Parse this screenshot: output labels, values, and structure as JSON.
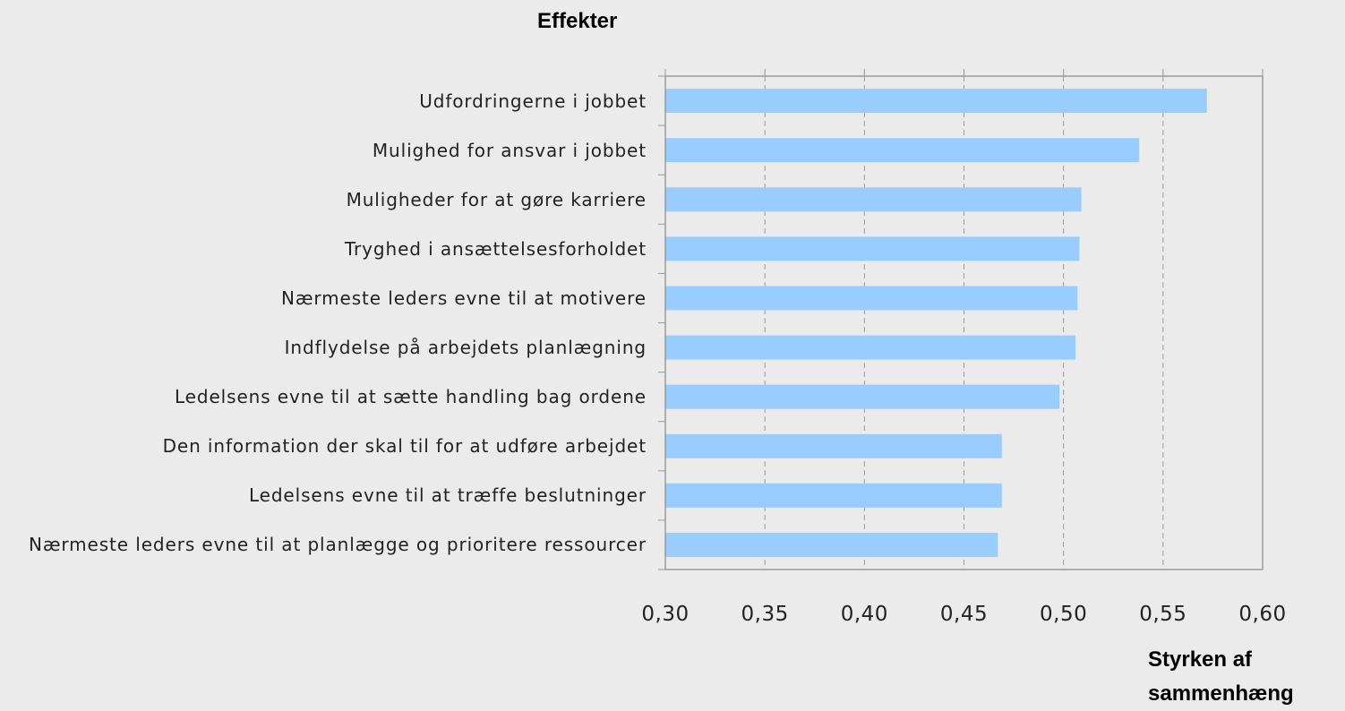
{
  "chart_data": {
    "type": "barh",
    "title": "Effekter",
    "x_label": "Styrken af sammenhæng",
    "categories": [
      "Udfordringerne i jobbet",
      "Mulighed for ansvar i jobbet",
      "Muligheder for at gøre karriere",
      "Tryghed i ansættelsesforholdet",
      "Nærmeste leders evne til at motivere",
      "Indflydelse på arbejdets planlægning",
      "Ledelsens evne til at sætte handling bag ordene",
      "Den information der skal til for at udføre arbejdet",
      "Ledelsens evne til at træffe beslutninger",
      "Nærmeste leders evne til at planlægge og prioritere ressourcer"
    ],
    "values": [
      0.572,
      0.538,
      0.509,
      0.508,
      0.507,
      0.506,
      0.498,
      0.469,
      0.469,
      0.467
    ],
    "color": "#99ccff",
    "xlim": [
      0.3,
      0.6
    ],
    "xticks": [
      {
        "value": 0.3,
        "label": "0,30"
      },
      {
        "value": 0.35,
        "label": "0,35"
      },
      {
        "value": 0.4,
        "label": "0,40"
      },
      {
        "value": 0.45,
        "label": "0,45"
      },
      {
        "value": 0.5,
        "label": "0,50"
      },
      {
        "value": 0.55,
        "label": "0,55"
      },
      {
        "value": 0.6,
        "label": "0,60"
      }
    ],
    "grid": true
  }
}
